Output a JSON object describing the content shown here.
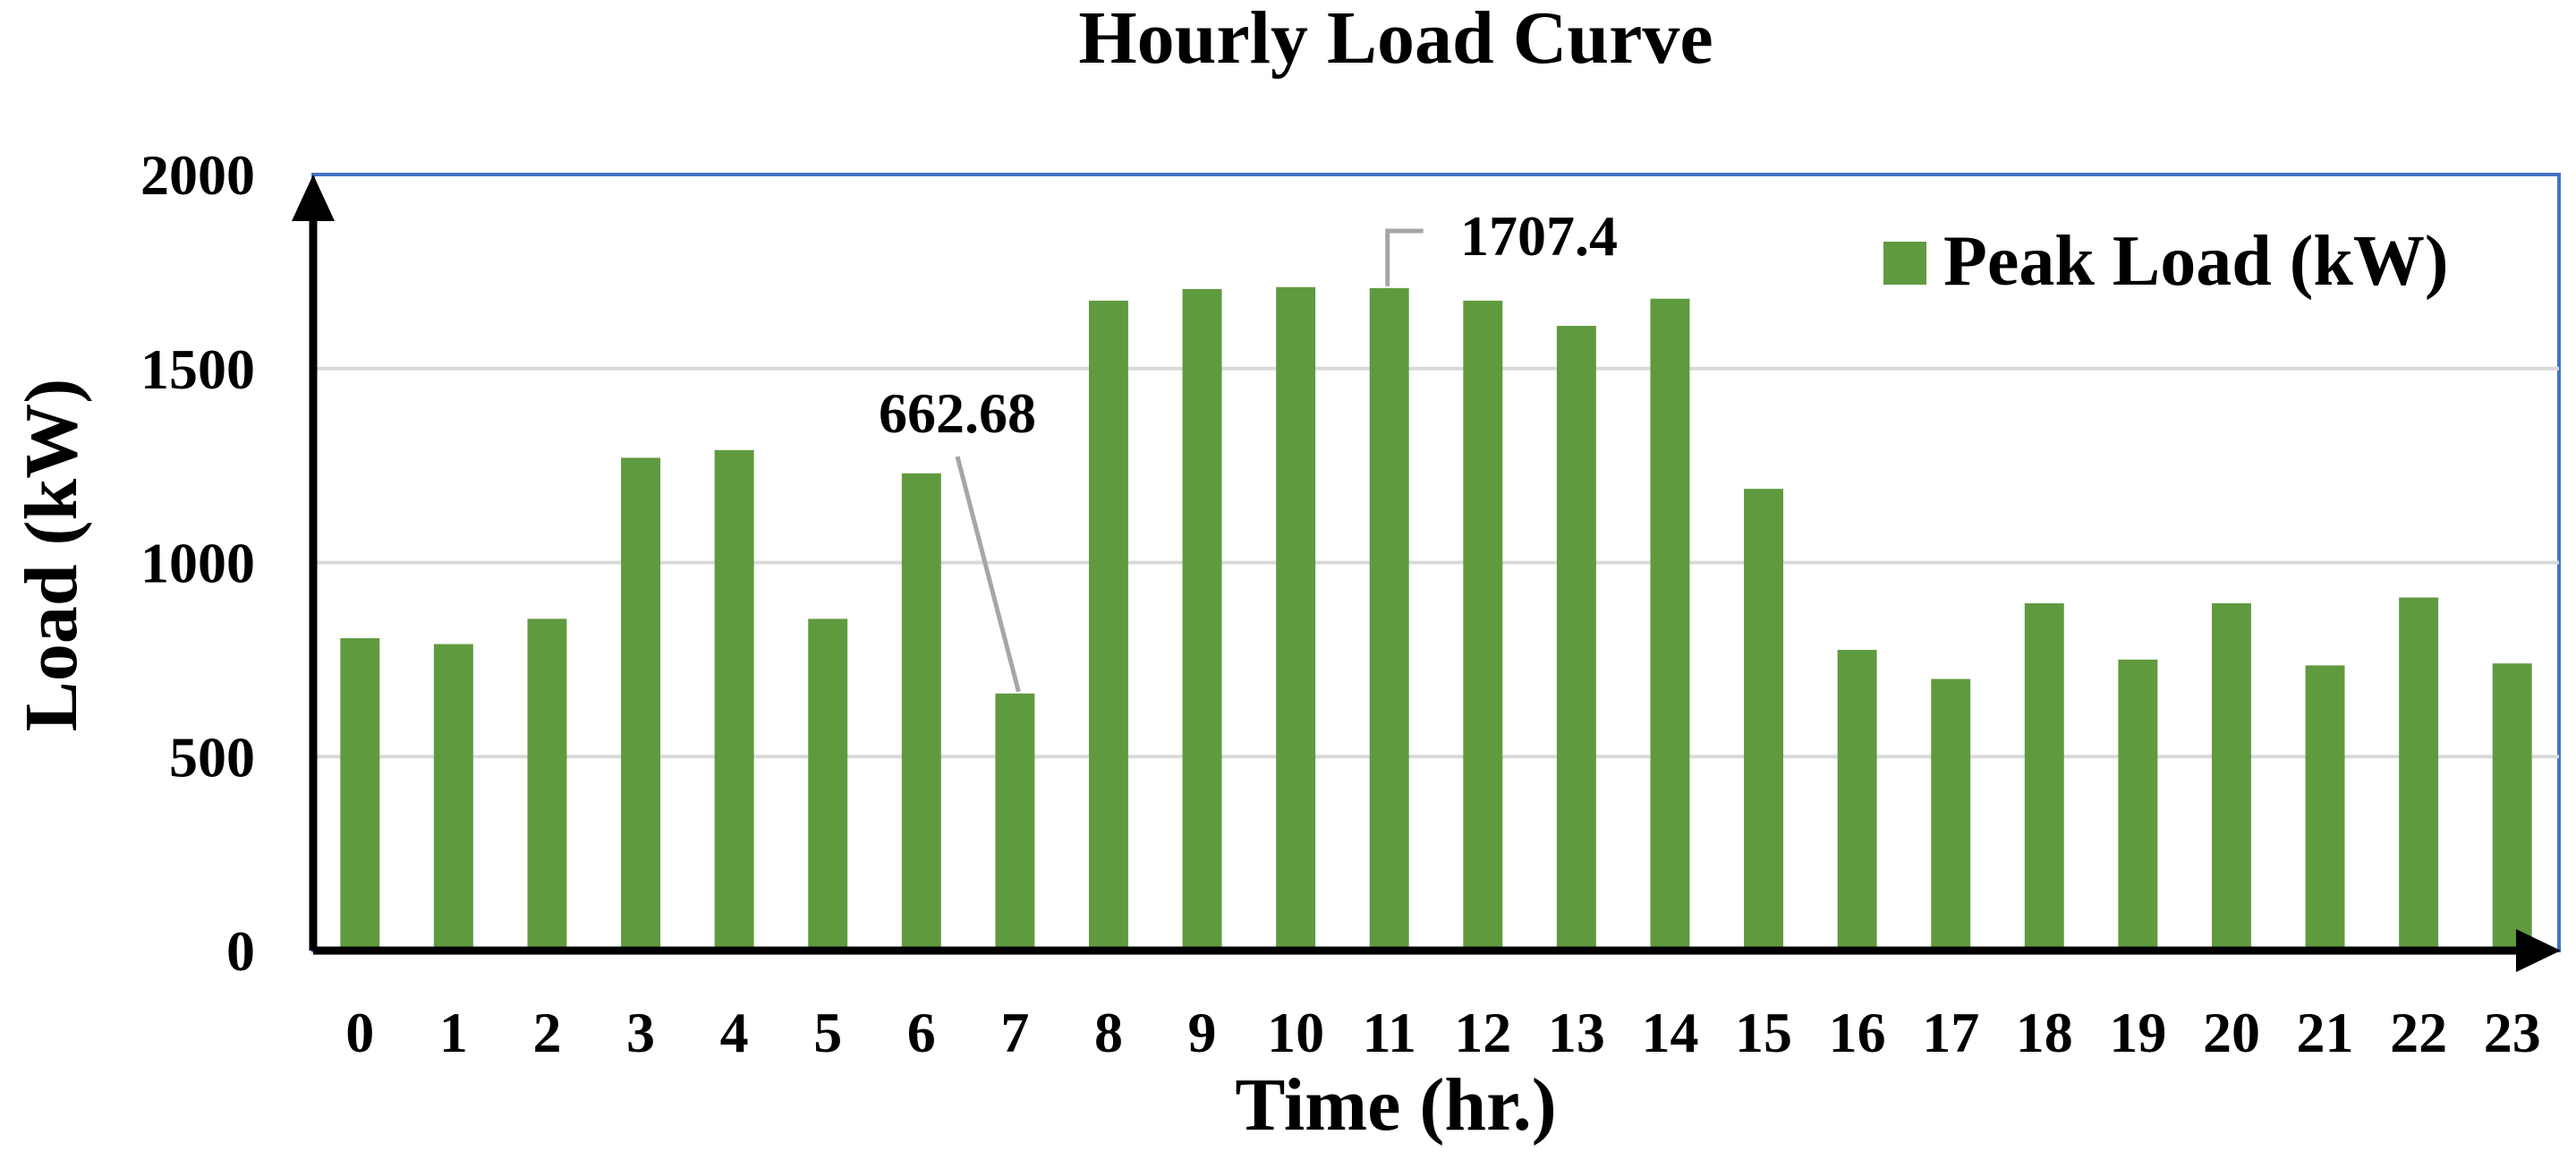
{
  "chart_data": {
    "type": "bar",
    "title": "Hourly Load Curve",
    "xlabel": "Time (hr.)",
    "ylabel": "Load (kW)",
    "categories": [
      "0",
      "1",
      "2",
      "3",
      "4",
      "5",
      "6",
      "7",
      "8",
      "9",
      "10",
      "11",
      "12",
      "13",
      "14",
      "15",
      "16",
      "17",
      "18",
      "19",
      "20",
      "21",
      "22",
      "23"
    ],
    "series": [
      {
        "name": "Peak Load (kW)",
        "color": "#5f9a3f",
        "values": [
          805,
          790,
          855,
          1270,
          1290,
          855,
          1230,
          662.68,
          1675,
          1705,
          1710,
          1707.4,
          1675,
          1610,
          1680,
          1190,
          775,
          700,
          895,
          750,
          895,
          735,
          910,
          740
        ]
      }
    ],
    "ylim": [
      0,
      2000
    ],
    "yticks": [
      0,
      500,
      1000,
      1500,
      2000
    ],
    "grid": true,
    "gridline_color": "#d9d9d9",
    "plot_border_color": "#4472c4",
    "legend_position": "top-right",
    "annotations": [
      {
        "category": "7",
        "text": "662.68"
      },
      {
        "category": "11",
        "text": "1707.4"
      }
    ]
  }
}
